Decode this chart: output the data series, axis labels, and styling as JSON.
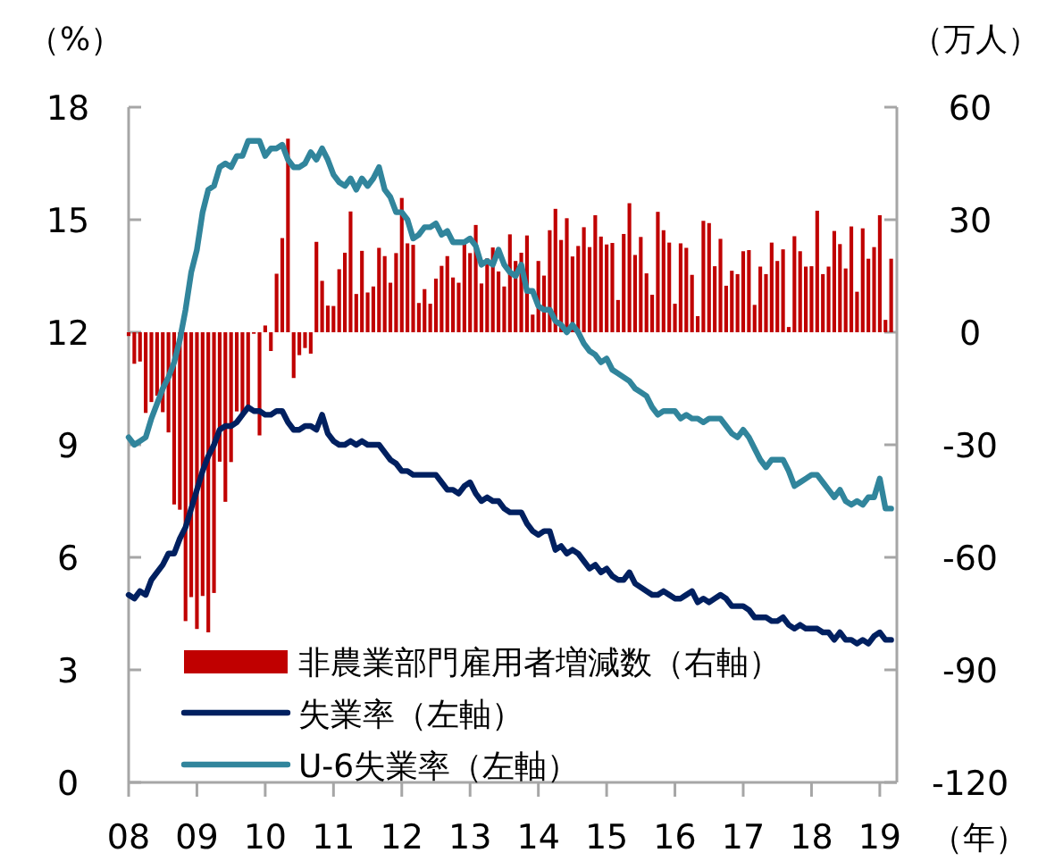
{
  "chart_data": {
    "type": "bar",
    "xlabel": "（年）",
    "ylabel": "（%）",
    "y2label": "（万人）",
    "legend": "bottom left",
    "xlim": [
      "2008-01",
      "2019-04"
    ],
    "xticks": [
      {
        "value": "2008-01",
        "label": "08"
      },
      {
        "value": "2009-01",
        "label": "09"
      },
      {
        "value": "2010-01",
        "label": "10"
      },
      {
        "value": "2011-01",
        "label": "11"
      },
      {
        "value": "2012-01",
        "label": "12"
      },
      {
        "value": "2013-01",
        "label": "13"
      },
      {
        "value": "2014-01",
        "label": "14"
      },
      {
        "value": "2015-01",
        "label": "15"
      },
      {
        "value": "2016-01",
        "label": "16"
      },
      {
        "value": "2017-01",
        "label": "17"
      },
      {
        "value": "2018-01",
        "label": "18"
      },
      {
        "value": "2019-01",
        "label": "19"
      }
    ],
    "ylim": [
      0,
      18
    ],
    "yticks": [
      0,
      3,
      6,
      9,
      12,
      15,
      18
    ],
    "y2lim": [
      -120,
      60
    ],
    "y2ticks": [
      -120,
      -90,
      -60,
      -30,
      0,
      30,
      60
    ],
    "x": [
      "2008-01",
      "2008-02",
      "2008-03",
      "2008-04",
      "2008-05",
      "2008-06",
      "2008-07",
      "2008-08",
      "2008-09",
      "2008-10",
      "2008-11",
      "2008-12",
      "2009-01",
      "2009-02",
      "2009-03",
      "2009-04",
      "2009-05",
      "2009-06",
      "2009-07",
      "2009-08",
      "2009-09",
      "2009-10",
      "2009-11",
      "2009-12",
      "2010-01",
      "2010-02",
      "2010-03",
      "2010-04",
      "2010-05",
      "2010-06",
      "2010-07",
      "2010-08",
      "2010-09",
      "2010-10",
      "2010-11",
      "2010-12",
      "2011-01",
      "2011-02",
      "2011-03",
      "2011-04",
      "2011-05",
      "2011-06",
      "2011-07",
      "2011-08",
      "2011-09",
      "2011-10",
      "2011-11",
      "2011-12",
      "2012-01",
      "2012-02",
      "2012-03",
      "2012-04",
      "2012-05",
      "2012-06",
      "2012-07",
      "2012-08",
      "2012-09",
      "2012-10",
      "2012-11",
      "2012-12",
      "2013-01",
      "2013-02",
      "2013-03",
      "2013-04",
      "2013-05",
      "2013-06",
      "2013-07",
      "2013-08",
      "2013-09",
      "2013-10",
      "2013-11",
      "2013-12",
      "2014-01",
      "2014-02",
      "2014-03",
      "2014-04",
      "2014-05",
      "2014-06",
      "2014-07",
      "2014-08",
      "2014-09",
      "2014-10",
      "2014-11",
      "2014-12",
      "2015-01",
      "2015-02",
      "2015-03",
      "2015-04",
      "2015-05",
      "2015-06",
      "2015-07",
      "2015-08",
      "2015-09",
      "2015-10",
      "2015-11",
      "2015-12",
      "2016-01",
      "2016-02",
      "2016-03",
      "2016-04",
      "2016-05",
      "2016-06",
      "2016-07",
      "2016-08",
      "2016-09",
      "2016-10",
      "2016-11",
      "2016-12",
      "2017-01",
      "2017-02",
      "2017-03",
      "2017-04",
      "2017-05",
      "2017-06",
      "2017-07",
      "2017-08",
      "2017-09",
      "2017-10",
      "2017-11",
      "2017-12",
      "2018-01",
      "2018-02",
      "2018-03",
      "2018-04",
      "2018-05",
      "2018-06",
      "2018-07",
      "2018-08",
      "2018-09",
      "2018-10",
      "2018-11",
      "2018-12",
      "2019-01",
      "2019-02",
      "2019-03"
    ],
    "series": [
      {
        "name": "非農業部門雇用者増減数（右軸）",
        "axis": "y2",
        "color": "#c00000",
        "values": [
          -1.0,
          -8.4,
          -7.8,
          -21.5,
          -18.6,
          -16.9,
          -21.3,
          -26.7,
          -45.9,
          -47.3,
          -77.0,
          -70.6,
          -79.1,
          -70.3,
          -80.0,
          -69.5,
          -34.5,
          -45.2,
          -34.6,
          -21.1,
          -22.5,
          -20.4,
          -0.4,
          -27.5,
          1.8,
          -5.0,
          15.6,
          25.1,
          51.6,
          -12.2,
          -6.1,
          -4.2,
          -5.7,
          24.1,
          13.7,
          7.1,
          7.0,
          16.8,
          21.2,
          32.2,
          10.2,
          21.7,
          10.6,
          12.2,
          22.5,
          20.3,
          13.2,
          21.1,
          35.8,
          23.7,
          23.3,
          7.8,
          11.5,
          7.6,
          14.3,
          17.7,
          20.3,
          14.6,
          13.2,
          24.4,
          21.1,
          28.6,
          13.0,
          19.7,
          22.6,
          16.2,
          12.2,
          26.1,
          19.0,
          21.2,
          25.8,
          4.7,
          19.0,
          15.1,
          27.2,
          32.9,
          24.6,
          30.4,
          20.2,
          23.0,
          28.0,
          22.7,
          31.2,
          25.5,
          23.4,
          23.8,
          8.6,
          26.2,
          34.4,
          20.6,
          25.4,
          15.7,
          10.0,
          32.1,
          27.2,
          23.9,
          7.6,
          23.7,
          22.5,
          15.3,
          4.3,
          29.7,
          29.1,
          17.6,
          24.9,
          12.4,
          16.4,
          15.5,
          21.6,
          21.9,
          7.3,
          17.5,
          15.5,
          23.9,
          19.0,
          22.1,
          1.4,
          25.6,
          21.6,
          17.5,
          17.6,
          32.4,
          15.5,
          17.5,
          27.0,
          23.5,
          17.0,
          28.2,
          10.8,
          27.7,
          19.6,
          22.7,
          31.2,
          3.3,
          19.6
        ]
      },
      {
        "name": "失業率（左軸）",
        "type": "line",
        "color": "#002060",
        "values": [
          5.0,
          4.9,
          5.1,
          5.0,
          5.4,
          5.6,
          5.8,
          6.1,
          6.1,
          6.5,
          6.8,
          7.3,
          7.8,
          8.3,
          8.7,
          9.0,
          9.4,
          9.5,
          9.5,
          9.6,
          9.8,
          10.0,
          9.9,
          9.9,
          9.8,
          9.8,
          9.9,
          9.9,
          9.6,
          9.4,
          9.4,
          9.5,
          9.5,
          9.4,
          9.8,
          9.3,
          9.1,
          9.0,
          9.0,
          9.1,
          9.0,
          9.1,
          9.0,
          9.0,
          9.0,
          8.8,
          8.6,
          8.5,
          8.3,
          8.3,
          8.2,
          8.2,
          8.2,
          8.2,
          8.2,
          8.0,
          7.8,
          7.8,
          7.7,
          7.9,
          8.0,
          7.7,
          7.5,
          7.6,
          7.5,
          7.5,
          7.3,
          7.2,
          7.2,
          7.2,
          6.9,
          6.7,
          6.6,
          6.7,
          6.7,
          6.2,
          6.3,
          6.1,
          6.2,
          6.1,
          5.9,
          5.7,
          5.8,
          5.6,
          5.7,
          5.5,
          5.4,
          5.4,
          5.6,
          5.3,
          5.2,
          5.1,
          5.0,
          5.0,
          5.1,
          5.0,
          4.9,
          4.9,
          5.0,
          5.1,
          4.8,
          4.9,
          4.8,
          4.9,
          5.0,
          4.9,
          4.7,
          4.7,
          4.7,
          4.6,
          4.4,
          4.4,
          4.4,
          4.3,
          4.3,
          4.4,
          4.2,
          4.1,
          4.2,
          4.1,
          4.1,
          4.1,
          4.0,
          4.0,
          3.8,
          4.0,
          3.8,
          3.8,
          3.7,
          3.8,
          3.7,
          3.9,
          4.0,
          3.8,
          3.8
        ]
      },
      {
        "name": "U-6失業率（左軸）",
        "type": "line",
        "color": "#31859c",
        "values": [
          9.2,
          9.0,
          9.1,
          9.2,
          9.7,
          10.1,
          10.5,
          10.8,
          11.2,
          11.8,
          12.6,
          13.6,
          14.2,
          15.2,
          15.8,
          15.9,
          16.4,
          16.5,
          16.4,
          16.7,
          16.7,
          17.1,
          17.1,
          17.1,
          16.7,
          16.9,
          16.9,
          17.0,
          16.6,
          16.4,
          16.4,
          16.5,
          16.8,
          16.6,
          16.9,
          16.6,
          16.2,
          16.0,
          15.9,
          16.1,
          15.8,
          16.1,
          15.9,
          16.1,
          16.4,
          15.8,
          15.6,
          15.2,
          15.2,
          15.0,
          14.5,
          14.6,
          14.8,
          14.8,
          14.9,
          14.6,
          14.7,
          14.4,
          14.4,
          14.4,
          14.5,
          14.3,
          13.8,
          13.9,
          13.8,
          14.2,
          13.8,
          13.6,
          13.5,
          13.8,
          13.1,
          13.1,
          12.7,
          12.6,
          12.6,
          12.3,
          12.2,
          12.0,
          12.2,
          12.0,
          11.7,
          11.5,
          11.4,
          11.2,
          11.3,
          11.0,
          10.9,
          10.8,
          10.7,
          10.5,
          10.4,
          10.3,
          10.0,
          9.8,
          9.9,
          9.9,
          9.9,
          9.7,
          9.8,
          9.7,
          9.7,
          9.6,
          9.7,
          9.7,
          9.7,
          9.5,
          9.3,
          9.2,
          9.4,
          9.2,
          8.9,
          8.6,
          8.4,
          8.6,
          8.6,
          8.6,
          8.3,
          7.9,
          8.0,
          8.1,
          8.2,
          8.2,
          8.0,
          7.8,
          7.6,
          7.8,
          7.5,
          7.4,
          7.5,
          7.4,
          7.6,
          7.6,
          8.1,
          7.3,
          7.3
        ]
      }
    ]
  }
}
